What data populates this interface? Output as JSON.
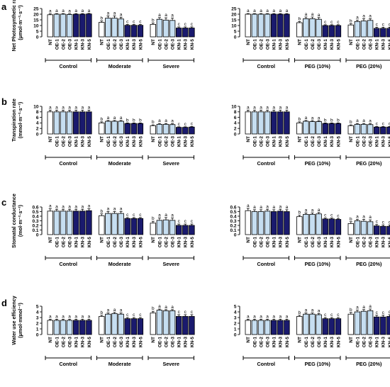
{
  "colors": {
    "white": "#ffffff",
    "light": "#c6def1",
    "dark": "#1a1a6e"
  },
  "chart_data": [
    {
      "type": "bar",
      "panel": "a",
      "side": "left",
      "ylabel": "Net Photosynthetic rate (μmol·m⁻²·s⁻¹)",
      "ylim": [
        0,
        25
      ],
      "yticks": [
        0,
        5,
        10,
        15,
        20,
        25
      ],
      "groups": [
        "Control",
        "Moderate",
        "Severe"
      ],
      "categories": [
        "NT",
        "OE-1",
        "OE-2",
        "OE-3",
        "KN-1",
        "KN-3",
        "KN-5"
      ],
      "series": [
        {
          "group": "Control",
          "values": [
            19.5,
            20,
            20,
            19.8,
            20,
            20,
            20.2
          ],
          "errors": [
            0.8,
            0.5,
            0.5,
            0.5,
            0.5,
            0.5,
            0.5
          ],
          "sig": [
            "a",
            "a",
            "a",
            "a",
            "a",
            "a",
            "a"
          ]
        },
        {
          "group": "Moderate",
          "values": [
            12.8,
            16.5,
            16.5,
            15.8,
            10.2,
            10.2,
            10.2
          ],
          "errors": [
            1.2,
            2,
            2,
            1.5,
            0.7,
            0.7,
            0.7
          ],
          "sig": [
            "b",
            "a",
            "a",
            "a",
            "c",
            "c",
            "c"
          ]
        },
        {
          "group": "Severe",
          "values": [
            11,
            15.5,
            14.8,
            14.5,
            7.8,
            7.8,
            7.8
          ],
          "errors": [
            1.2,
            1.5,
            2,
            2,
            1,
            1,
            1
          ],
          "sig": [
            "b",
            "a",
            "a",
            "a",
            "c",
            "c",
            "c"
          ]
        }
      ]
    },
    {
      "type": "bar",
      "panel": "a",
      "side": "right",
      "ylabel": "",
      "ylim": [
        0,
        25
      ],
      "yticks": [
        0,
        5,
        10,
        15,
        20,
        25
      ],
      "groups": [
        "Control",
        "PEG (10%)",
        "PEG (20%)"
      ],
      "categories": [
        "NT",
        "OE-1",
        "OE-2",
        "OE-3",
        "KN-1",
        "KN-3",
        "KN-5"
      ],
      "series": [
        {
          "group": "Control",
          "values": [
            20,
            20,
            20,
            20,
            20,
            20,
            20
          ],
          "errors": [
            0.5,
            0.5,
            0.5,
            0.5,
            0.5,
            0.5,
            0.5
          ],
          "sig": [
            "a",
            "a",
            "a",
            "a",
            "a",
            "a",
            "a"
          ]
        },
        {
          "group": "PEG (10%)",
          "values": [
            12.5,
            16,
            16,
            15.5,
            10,
            10,
            10
          ],
          "errors": [
            1,
            1.5,
            1.5,
            1.5,
            0.7,
            0.7,
            0.7
          ],
          "sig": [
            "b",
            "a",
            "a",
            "a",
            "c",
            "c",
            "c"
          ]
        },
        {
          "group": "PEG (20%)",
          "values": [
            10.5,
            13.5,
            14,
            14.5,
            7.5,
            7.5,
            7.5
          ],
          "errors": [
            1.2,
            1.2,
            2,
            1.5,
            1,
            1,
            1
          ],
          "sig": [
            "b",
            "a",
            "a",
            "a",
            "c",
            "c",
            "c"
          ]
        }
      ]
    },
    {
      "type": "bar",
      "panel": "b",
      "side": "left",
      "ylabel": "Transpiration rate (mmol·m⁻²·s⁻¹)",
      "ylim": [
        0,
        10
      ],
      "yticks": [
        0,
        2,
        4,
        6,
        8,
        10
      ],
      "groups": [
        "Control",
        "Moderate",
        "Severe"
      ],
      "categories": [
        "NT",
        "OE-1",
        "OE-2",
        "OE-3",
        "KN-1",
        "KN-3",
        "KN-5"
      ],
      "series": [
        {
          "group": "Control",
          "values": [
            8,
            8,
            8,
            8,
            8,
            8,
            8
          ],
          "errors": [
            0.6,
            0.6,
            0.6,
            0.6,
            0.6,
            0.6,
            0.6
          ],
          "sig": [
            "a",
            "a",
            "a",
            "a",
            "a",
            "a",
            "a"
          ]
        },
        {
          "group": "Moderate",
          "values": [
            4,
            4.6,
            4.6,
            4.6,
            3.8,
            3.8,
            3.8
          ],
          "errors": [
            0.4,
            0.3,
            0.3,
            0.3,
            0.2,
            0.2,
            0.2
          ],
          "sig": [
            "b",
            "a",
            "a",
            "a",
            "b",
            "b",
            "b"
          ]
        },
        {
          "group": "Severe",
          "values": [
            3,
            3.5,
            3.5,
            3.4,
            2.4,
            2.4,
            2.5
          ],
          "errors": [
            0.3,
            0.3,
            0.3,
            0.3,
            0.2,
            0.2,
            0.2
          ],
          "sig": [
            "b",
            "a",
            "a",
            "a",
            "c",
            "c",
            "c"
          ]
        }
      ]
    },
    {
      "type": "bar",
      "panel": "b",
      "side": "right",
      "ylabel": "",
      "ylim": [
        0,
        10
      ],
      "yticks": [
        0,
        2,
        4,
        6,
        8,
        10
      ],
      "groups": [
        "Control",
        "PEG (10%)",
        "PEG (20%)"
      ],
      "categories": [
        "NT",
        "OE-1",
        "OE-2",
        "OE-3",
        "KN-1",
        "KN-3",
        "KN-5"
      ],
      "series": [
        {
          "group": "Control",
          "values": [
            8,
            8,
            8,
            8,
            8,
            8,
            8
          ],
          "errors": [
            0.6,
            0.6,
            0.6,
            0.6,
            0.6,
            0.6,
            0.6
          ],
          "sig": [
            "a",
            "a",
            "a",
            "a",
            "a",
            "a",
            "a"
          ]
        },
        {
          "group": "PEG (10%)",
          "values": [
            4,
            4.6,
            4.5,
            4.5,
            3.8,
            3.8,
            3.8
          ],
          "errors": [
            0.4,
            0.3,
            0.3,
            0.3,
            0.2,
            0.2,
            0.2
          ],
          "sig": [
            "b",
            "a",
            "a",
            "a",
            "b",
            "b",
            "b"
          ]
        },
        {
          "group": "PEG (20%)",
          "values": [
            3,
            3.5,
            3.5,
            3.4,
            2.5,
            2.5,
            2.5
          ],
          "errors": [
            0.3,
            0.3,
            0.3,
            0.3,
            0.2,
            0.2,
            0.2
          ],
          "sig": [
            "b",
            "a",
            "a",
            "a",
            "c",
            "c",
            "c"
          ]
        }
      ]
    },
    {
      "type": "bar",
      "panel": "c",
      "side": "left",
      "ylabel": "Stomatal conductance (mol·m⁻²·s⁻¹)",
      "ylim": [
        0,
        0.6
      ],
      "yticks": [
        0,
        0.1,
        0.2,
        0.3,
        0.4,
        0.5,
        0.6
      ],
      "groups": [
        "Control",
        "Moderate",
        "Severe"
      ],
      "categories": [
        "NT",
        "OE-1",
        "OE-2",
        "OE-3",
        "KN-1",
        "KN-3",
        "KN-5"
      ],
      "series": [
        {
          "group": "Control",
          "values": [
            0.51,
            0.51,
            0.51,
            0.51,
            0.51,
            0.51,
            0.52
          ],
          "errors": [
            0.05,
            0.04,
            0.04,
            0.04,
            0.04,
            0.04,
            0.04
          ],
          "sig": [
            "a",
            "a",
            "a",
            "a",
            "a",
            "a",
            "a"
          ]
        },
        {
          "group": "Moderate",
          "values": [
            0.41,
            0.46,
            0.46,
            0.46,
            0.35,
            0.35,
            0.35
          ],
          "errors": [
            0.04,
            0.04,
            0.04,
            0.04,
            0.02,
            0.02,
            0.02
          ],
          "sig": [
            "b",
            "a",
            "a",
            "a",
            "c",
            "c",
            "c"
          ]
        },
        {
          "group": "Severe",
          "values": [
            0.25,
            0.31,
            0.32,
            0.31,
            0.2,
            0.2,
            0.2
          ],
          "errors": [
            0.04,
            0.05,
            0.05,
            0.05,
            0.03,
            0.03,
            0.03
          ],
          "sig": [
            "b",
            "a",
            "a",
            "a",
            "c",
            "c",
            "c"
          ]
        }
      ]
    },
    {
      "type": "bar",
      "panel": "c",
      "side": "right",
      "ylabel": "",
      "ylim": [
        0,
        0.6
      ],
      "yticks": [
        0,
        0.1,
        0.2,
        0.3,
        0.4,
        0.5,
        0.6
      ],
      "groups": [
        "Control",
        "PEG (10%)",
        "PEG (20%)"
      ],
      "categories": [
        "NT",
        "OE-1",
        "OE-2",
        "OE-3",
        "KN-1",
        "KN-3",
        "KN-5"
      ],
      "series": [
        {
          "group": "Control",
          "values": [
            0.52,
            0.5,
            0.5,
            0.51,
            0.5,
            0.51,
            0.5
          ],
          "errors": [
            0.05,
            0.04,
            0.04,
            0.04,
            0.04,
            0.04,
            0.04
          ],
          "sig": [
            "a",
            "a",
            "a",
            "a",
            "a",
            "a",
            "a"
          ]
        },
        {
          "group": "PEG (10%)",
          "values": [
            0.39,
            0.44,
            0.44,
            0.45,
            0.34,
            0.34,
            0.33
          ],
          "errors": [
            0.03,
            0.03,
            0.03,
            0.03,
            0.02,
            0.02,
            0.02
          ],
          "sig": [
            "b",
            "a",
            "a",
            "a",
            "c",
            "c",
            "c"
          ]
        },
        {
          "group": "PEG (20%)",
          "values": [
            0.24,
            0.3,
            0.29,
            0.28,
            0.19,
            0.18,
            0.18
          ],
          "errors": [
            0.04,
            0.03,
            0.04,
            0.04,
            0.03,
            0.03,
            0.03
          ],
          "sig": [
            "b",
            "a",
            "a",
            "a",
            "c",
            "c",
            "c"
          ]
        }
      ]
    },
    {
      "type": "bar",
      "panel": "d",
      "side": "left",
      "ylabel": "Water use efficiency (μmol·mmol⁻¹)",
      "ylim": [
        0,
        5
      ],
      "yticks": [
        0,
        1,
        2,
        3,
        4,
        5
      ],
      "groups": [
        "Control",
        "Moderate",
        "Severe"
      ],
      "categories": [
        "NT",
        "OE-1",
        "OE-2",
        "OE-3",
        "KN-1",
        "KN-3",
        "KN-5"
      ],
      "series": [
        {
          "group": "Control",
          "values": [
            2.5,
            2.5,
            2.5,
            2.5,
            2.5,
            2.5,
            2.5
          ],
          "errors": [
            0.2,
            0.2,
            0.2,
            0.2,
            0.2,
            0.2,
            0.2
          ],
          "sig": [
            "a",
            "a",
            "a",
            "a",
            "a",
            "a",
            "a"
          ]
        },
        {
          "group": "Moderate",
          "values": [
            3.2,
            3.6,
            3.7,
            3.6,
            2.8,
            2.8,
            2.8
          ],
          "errors": [
            0.2,
            0.2,
            0.2,
            0.2,
            0.2,
            0.2,
            0.2
          ],
          "sig": [
            "b",
            "a",
            "a",
            "a",
            "c",
            "c",
            "c"
          ]
        },
        {
          "group": "Severe",
          "values": [
            3.8,
            4.3,
            4.2,
            4.2,
            3.2,
            3.2,
            3.2
          ],
          "errors": [
            0.3,
            0.2,
            0.2,
            0.2,
            0.3,
            0.3,
            0.3
          ],
          "sig": [
            "b",
            "a",
            "a",
            "a",
            "c",
            "c",
            "c"
          ]
        }
      ]
    },
    {
      "type": "bar",
      "panel": "d",
      "side": "right",
      "ylabel": "",
      "ylim": [
        0,
        5
      ],
      "yticks": [
        0,
        1,
        2,
        3,
        4,
        5
      ],
      "groups": [
        "Control",
        "PEG (10%)",
        "PEG (20%)"
      ],
      "categories": [
        "NT",
        "OE-1",
        "OE-2",
        "OE-3",
        "KN-1",
        "KN-3",
        "KN-5"
      ],
      "series": [
        {
          "group": "Control",
          "values": [
            2.5,
            2.5,
            2.5,
            2.5,
            2.5,
            2.5,
            2.5
          ],
          "errors": [
            0.2,
            0.2,
            0.2,
            0.2,
            0.2,
            0.2,
            0.2
          ],
          "sig": [
            "a",
            "a",
            "a",
            "a",
            "a",
            "a",
            "a"
          ]
        },
        {
          "group": "PEG (10%)",
          "values": [
            3.2,
            3.6,
            3.6,
            3.5,
            2.8,
            2.8,
            2.8
          ],
          "errors": [
            0.2,
            0.2,
            0.2,
            0.2,
            0.2,
            0.2,
            0.2
          ],
          "sig": [
            "b",
            "a",
            "a",
            "a",
            "c",
            "c",
            "c"
          ]
        },
        {
          "group": "PEG (20%)",
          "values": [
            3.6,
            4,
            4.1,
            4.2,
            3.1,
            3.1,
            3.2
          ],
          "errors": [
            0.3,
            0.3,
            0.3,
            0.3,
            0.3,
            0.3,
            0.3
          ],
          "sig": [
            "b",
            "a",
            "a",
            "a",
            "c",
            "c",
            "c"
          ]
        }
      ]
    }
  ]
}
